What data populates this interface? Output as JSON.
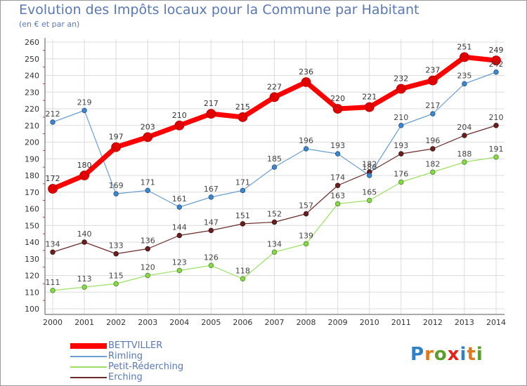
{
  "header": {
    "title": "Evolution des Impôts locaux pour la Commune par Habitant",
    "subtitle": "(en € et par an)"
  },
  "colors": {
    "title": "#5a78b4",
    "grid": "#dcdcdc",
    "bettviller": "#ff0000",
    "rimling": "#6a9fd0",
    "petit_rederching": "#9be063",
    "erching": "#6b2a2a"
  },
  "logo": {
    "letters": [
      "P",
      "r",
      "o",
      "x",
      "i",
      "t",
      "i"
    ],
    "colors": [
      "#2f82c8",
      "#e07b1d",
      "#5b9e2c",
      "#e3241b",
      "#2f82c8",
      "#e07b1d",
      "#5b9e2c"
    ]
  },
  "chart_data": {
    "type": "line",
    "title": "Evolution des Impôts locaux pour la Commune par Habitant",
    "subtitle": "(en € et par an)",
    "xlabel": "",
    "ylabel": "",
    "ylim": [
      100,
      260
    ],
    "ytick_step": 10,
    "grid": true,
    "legend_position": "bottom-left",
    "categories": [
      "2000",
      "2001",
      "2002",
      "2003",
      "2004",
      "2005",
      "2006",
      "2007",
      "2008",
      "2009",
      "2010",
      "2011",
      "2012",
      "2013",
      "2014"
    ],
    "series": [
      {
        "name": "BETTVILLER",
        "key": "bettviller",
        "values": [
          172,
          180,
          197,
          203,
          210,
          217,
          215,
          227,
          236,
          220,
          221,
          232,
          237,
          251,
          249
        ]
      },
      {
        "name": "Rimling",
        "key": "rimling",
        "values": [
          212,
          219,
          169,
          171,
          161,
          167,
          171,
          185,
          196,
          193,
          180,
          210,
          217,
          235,
          242
        ]
      },
      {
        "name": "Petit-Réderching",
        "key": "petit_rederching",
        "values": [
          111,
          113,
          115,
          120,
          123,
          126,
          118,
          134,
          139,
          163,
          165,
          176,
          182,
          188,
          191
        ]
      },
      {
        "name": "Erching",
        "key": "erching",
        "values": [
          134,
          140,
          133,
          136,
          144,
          147,
          151,
          152,
          157,
          174,
          182,
          193,
          196,
          204,
          210
        ]
      }
    ]
  }
}
